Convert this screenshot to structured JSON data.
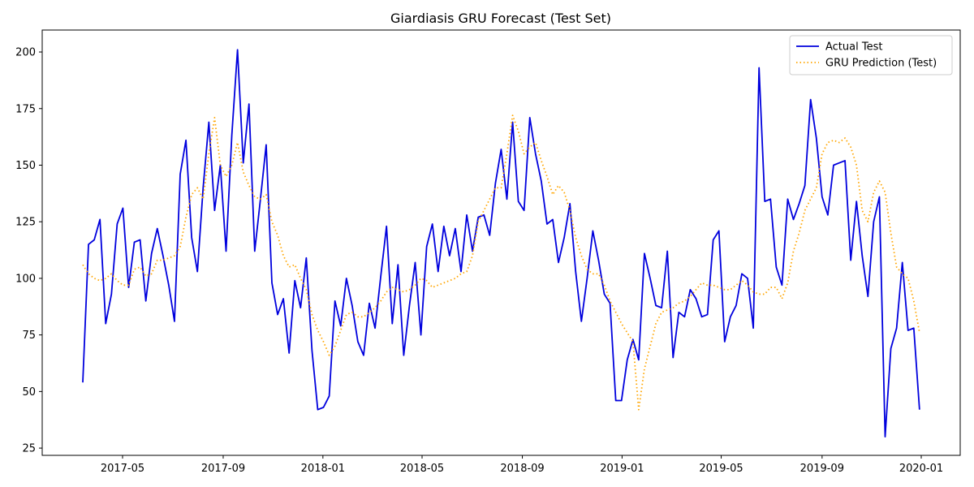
{
  "chart_data": {
    "type": "line",
    "title": "Giardiasis GRU Forecast (Test Set)",
    "xlim": [
      -7.08,
      153.1
    ],
    "xticks": [
      {
        "value": 6.94,
        "label": "2017-05"
      },
      {
        "value": 24.5,
        "label": "2017-09"
      },
      {
        "value": 41.9,
        "label": "2018-01"
      },
      {
        "value": 59.2,
        "label": "2018-05"
      },
      {
        "value": 76.7,
        "label": "2018-09"
      },
      {
        "value": 94.1,
        "label": "2019-01"
      },
      {
        "value": 111.4,
        "label": "2019-05"
      },
      {
        "value": 129.0,
        "label": "2019-09"
      },
      {
        "value": 146.3,
        "label": "2020-01"
      }
    ],
    "ylim": [
      21.8,
      209.7
    ],
    "yticks": [
      25,
      50,
      75,
      100,
      125,
      150,
      175,
      200
    ],
    "legend": "upper right",
    "series": [
      {
        "name": "Actual Test",
        "color": "#0000dd",
        "style": "solid",
        "values": [
          54,
          115,
          117,
          126,
          80,
          93,
          124,
          131,
          96,
          116,
          117,
          90,
          111,
          122,
          110,
          97,
          81,
          146,
          161,
          118,
          103,
          140,
          169,
          130,
          150,
          112,
          163,
          201,
          151,
          177,
          112,
          135,
          159,
          98,
          84,
          91,
          67,
          99,
          87,
          109,
          68,
          42,
          43,
          48,
          90,
          79,
          100,
          88,
          72,
          66,
          89,
          78,
          101,
          123,
          80,
          106,
          66,
          88,
          107,
          75,
          114,
          124,
          103,
          123,
          110,
          122,
          103,
          128,
          112,
          127,
          128,
          119,
          142,
          157,
          135,
          169,
          134,
          130,
          171,
          155,
          143,
          124,
          126,
          107,
          118,
          133,
          103,
          81,
          100,
          121,
          108,
          93,
          89,
          46,
          46,
          64,
          73,
          64,
          111,
          100,
          88,
          87,
          112,
          65,
          85,
          83,
          95,
          91,
          83,
          84,
          117,
          121,
          72,
          83,
          88,
          102,
          100,
          78,
          193,
          134,
          135,
          105,
          97,
          135,
          126,
          133,
          141,
          179,
          162,
          136,
          128,
          150,
          151,
          152,
          108,
          134,
          110,
          92,
          125,
          136,
          30,
          69,
          78,
          107,
          77,
          78,
          42
        ]
      },
      {
        "name": "GRU Prediction (Test)",
        "color": "orange",
        "style": "dotted",
        "values": [
          106,
          102,
          100,
          99,
          100,
          102,
          99,
          97,
          97,
          104,
          105,
          101,
          102,
          108,
          108,
          109,
          110,
          114,
          127,
          137,
          140,
          135,
          155,
          171,
          150,
          145,
          150,
          160,
          147,
          141,
          136,
          135,
          137,
          125,
          119,
          110,
          105,
          106,
          100,
          95,
          84,
          77,
          72,
          66,
          70,
          77,
          84,
          85,
          83,
          83,
          85,
          87,
          90,
          94,
          96,
          95,
          94,
          95,
          97,
          100,
          99,
          96,
          97,
          98,
          99,
          100,
          102,
          103,
          110,
          125,
          130,
          135,
          140,
          140,
          155,
          172,
          165,
          155,
          158,
          160,
          152,
          145,
          137,
          141,
          138,
          130,
          118,
          110,
          104,
          102,
          102,
          97,
          90,
          85,
          80,
          76,
          72,
          42,
          60,
          70,
          80,
          85,
          86,
          87,
          89,
          90,
          92,
          95,
          98,
          97,
          97,
          96,
          95,
          95,
          97,
          99,
          97,
          94,
          93,
          93,
          96,
          96,
          91,
          98,
          112,
          120,
          130,
          135,
          140,
          155,
          160,
          161,
          160,
          162,
          158,
          150,
          130,
          125,
          138,
          143,
          138,
          120,
          105,
          102,
          100,
          90,
          76
        ]
      }
    ]
  }
}
